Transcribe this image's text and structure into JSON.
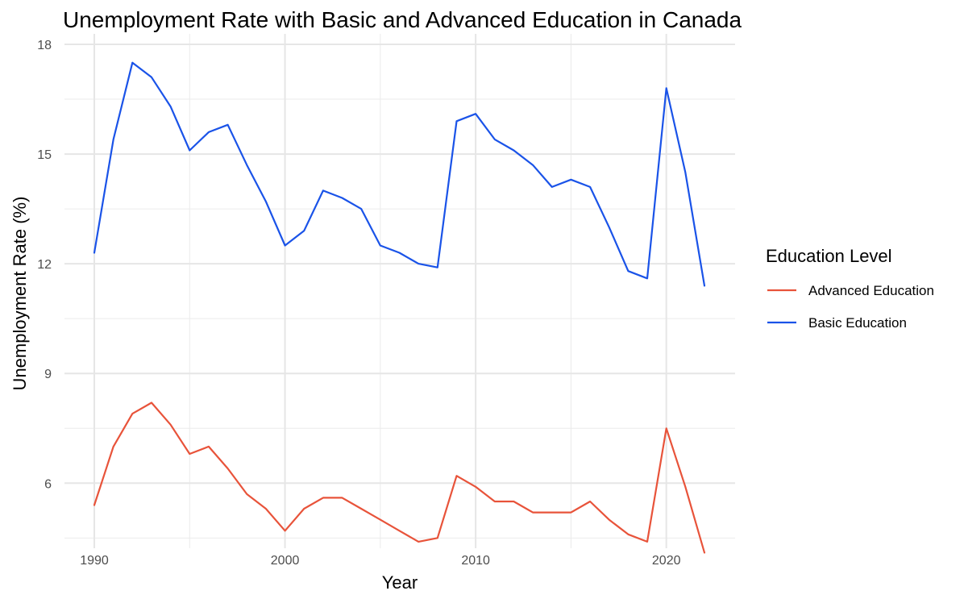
{
  "chart_data": {
    "type": "line",
    "title": "Unemployment Rate with Basic and Advanced Education in Canada",
    "xlabel": "Year",
    "ylabel": "Unemployment Rate (%)",
    "xlim": [
      1990,
      2022
    ],
    "ylim": [
      4.0,
      18.0
    ],
    "x_ticks": [
      1990,
      2000,
      2010,
      2020
    ],
    "y_ticks": [
      6,
      9,
      12,
      15,
      18
    ],
    "grid": true,
    "legend": {
      "title": "Education Level",
      "position": "right"
    },
    "x": [
      1990,
      1991,
      1992,
      1993,
      1994,
      1995,
      1996,
      1997,
      1998,
      1999,
      2000,
      2001,
      2002,
      2003,
      2004,
      2005,
      2006,
      2007,
      2008,
      2009,
      2010,
      2011,
      2012,
      2013,
      2014,
      2015,
      2016,
      2017,
      2018,
      2019,
      2020,
      2021,
      2022
    ],
    "series": [
      {
        "name": "Advanced Education",
        "color": "#e8533a",
        "values": [
          5.4,
          7.0,
          7.9,
          8.2,
          7.6,
          6.8,
          7.0,
          6.4,
          5.7,
          5.3,
          4.7,
          5.3,
          5.6,
          5.6,
          5.3,
          5.0,
          4.7,
          4.4,
          4.5,
          6.2,
          5.9,
          5.5,
          5.5,
          5.2,
          5.2,
          5.2,
          5.5,
          5.0,
          4.6,
          4.4,
          7.5,
          5.9,
          4.1
        ]
      },
      {
        "name": "Basic Education",
        "color": "#1a53e8",
        "values": [
          12.3,
          15.4,
          17.5,
          17.1,
          16.3,
          15.1,
          15.6,
          15.8,
          14.7,
          13.7,
          12.5,
          12.9,
          14.0,
          13.8,
          13.5,
          12.5,
          12.3,
          12.0,
          11.9,
          15.9,
          16.1,
          15.4,
          15.1,
          14.7,
          14.1,
          14.3,
          14.1,
          13.0,
          11.8,
          11.6,
          16.8,
          14.5,
          11.4
        ]
      }
    ]
  }
}
